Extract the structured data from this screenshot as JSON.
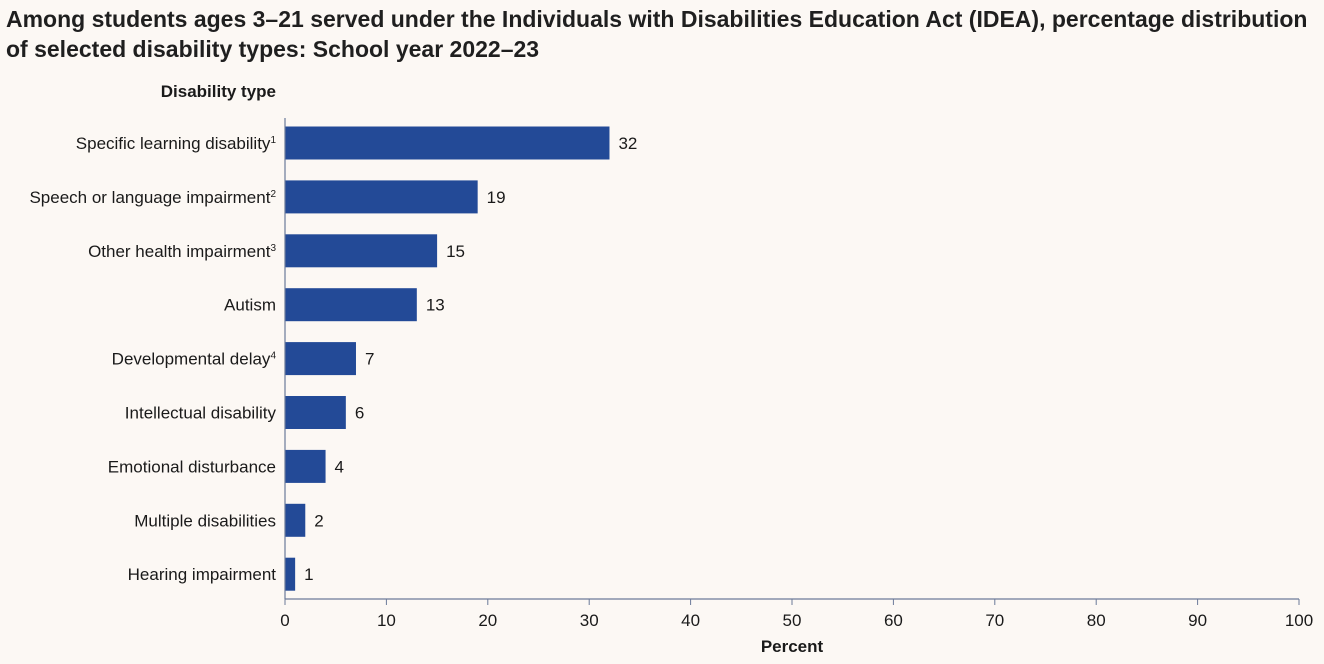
{
  "chart_data": {
    "type": "bar",
    "orientation": "horizontal",
    "title": "Among students ages 3–21 served under the Individuals with Disabilities Education Act (IDEA), percentage distribution of selected disability types: School year 2022–23",
    "category_axis_title": "Disability type",
    "xlabel": "Percent",
    "xlim": [
      0,
      100
    ],
    "xticks": [
      0,
      10,
      20,
      30,
      40,
      50,
      60,
      70,
      80,
      90,
      100
    ],
    "categories": [
      {
        "label": "Specific learning disability",
        "footnote": "1"
      },
      {
        "label": "Speech or language impairment",
        "footnote": "2"
      },
      {
        "label": "Other health impairment",
        "footnote": "3"
      },
      {
        "label": "Autism",
        "footnote": ""
      },
      {
        "label": "Developmental delay",
        "footnote": "4"
      },
      {
        "label": "Intellectual disability",
        "footnote": ""
      },
      {
        "label": "Emotional disturbance",
        "footnote": ""
      },
      {
        "label": "Multiple disabilities",
        "footnote": ""
      },
      {
        "label": "Hearing impairment",
        "footnote": ""
      }
    ],
    "values": [
      32,
      19,
      15,
      13,
      7,
      6,
      4,
      2,
      1
    ],
    "bar_color": "#234a97",
    "axis_color": "#6b7a99",
    "text_color": "#1a1a1a"
  }
}
